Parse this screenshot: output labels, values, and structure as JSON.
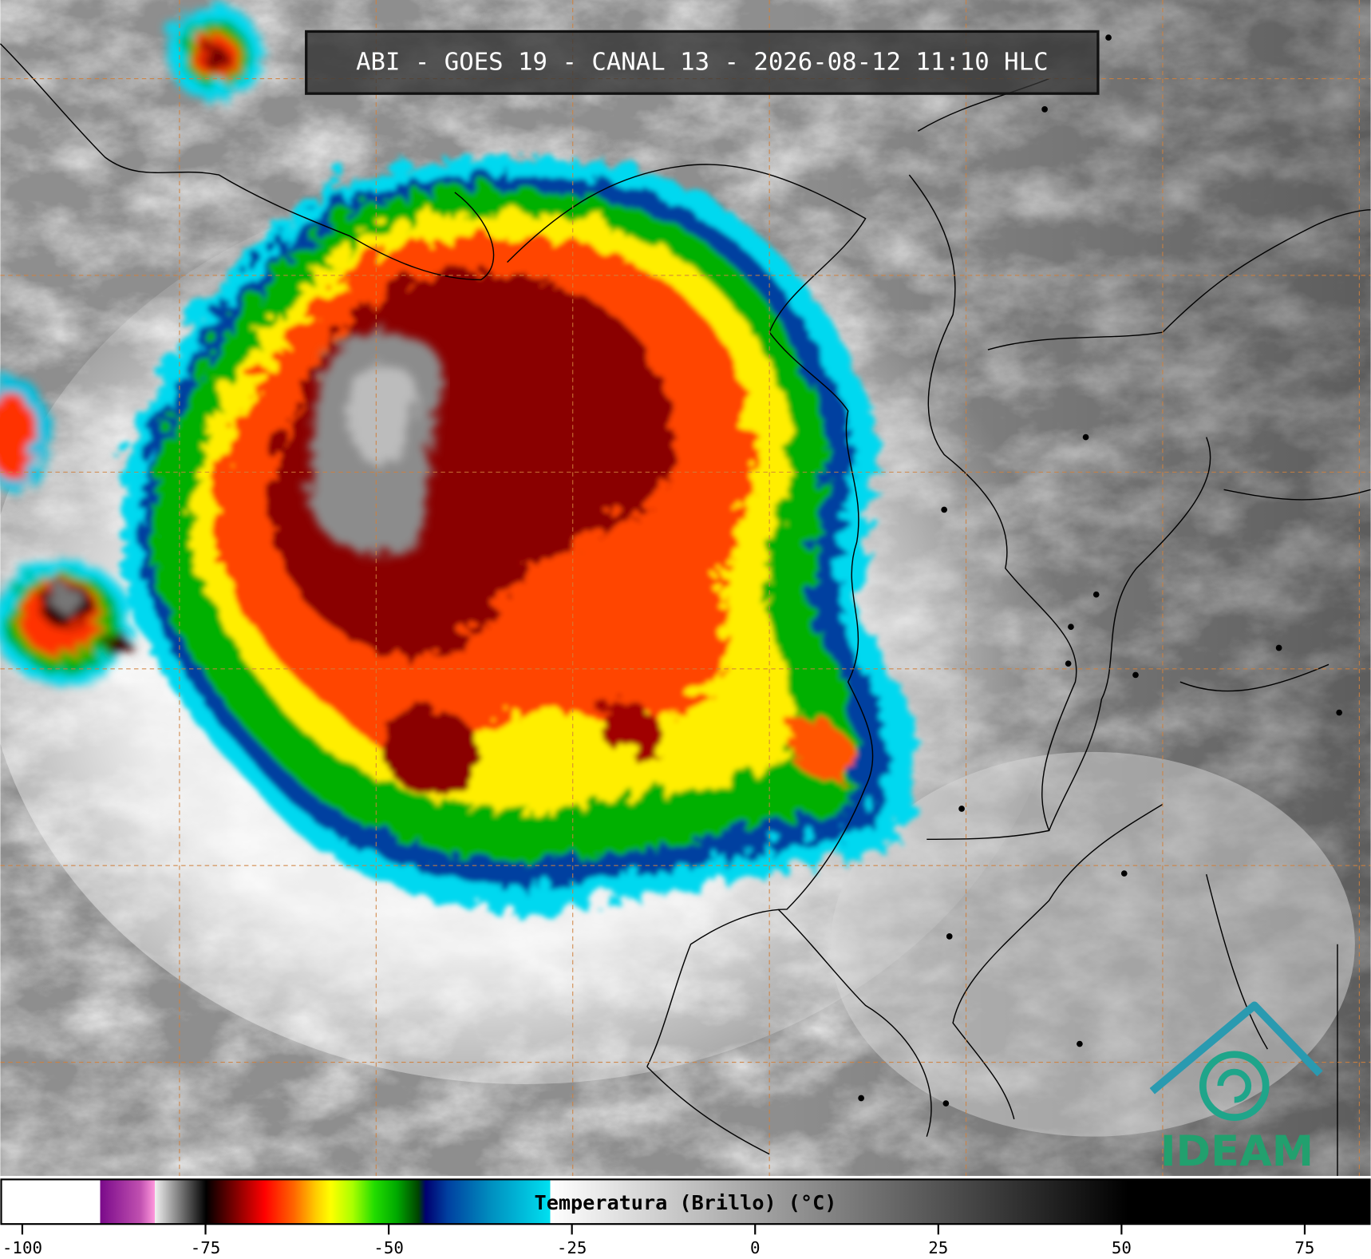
{
  "header": {
    "title": "ABI - GOES 19 - CANAL 13 - 2026-08-12 11:10 HLC"
  },
  "colorbar": {
    "label": "Temperatura (Brillo) (°C)",
    "lim": [
      -103,
      84
    ],
    "ticks": [
      -100,
      -75,
      -50,
      -25,
      0,
      25,
      50,
      75
    ],
    "colormap": [
      {
        "value": -103,
        "color": "#ffffff"
      },
      {
        "value": -89.5,
        "color": "#ffffff"
      },
      {
        "value": -89.5,
        "color": "#7a0a8a"
      },
      {
        "value": -84,
        "color": "#c050b0"
      },
      {
        "value": -82,
        "color": "#ff99dd"
      },
      {
        "value": -82,
        "color": "#f0f0f0"
      },
      {
        "value": -75,
        "color": "#000000"
      },
      {
        "value": -73,
        "color": "#400000"
      },
      {
        "value": -70,
        "color": "#a00000"
      },
      {
        "value": -67,
        "color": "#ff0000"
      },
      {
        "value": -63,
        "color": "#ff6600"
      },
      {
        "value": -60,
        "color": "#ffcc00"
      },
      {
        "value": -58,
        "color": "#ffff00"
      },
      {
        "value": -55,
        "color": "#aaff00"
      },
      {
        "value": -52,
        "color": "#22dd00"
      },
      {
        "value": -49,
        "color": "#00aa00"
      },
      {
        "value": -46,
        "color": "#004400"
      },
      {
        "value": -45,
        "color": "#000070"
      },
      {
        "value": -42,
        "color": "#0040a0"
      },
      {
        "value": -36,
        "color": "#0090c0"
      },
      {
        "value": -28,
        "color": "#00e0f0"
      },
      {
        "value": -28,
        "color": "#ffffff"
      },
      {
        "value": 51,
        "color": "#000000"
      },
      {
        "value": 84,
        "color": "#000000"
      }
    ]
  },
  "logo": {
    "text": "IDEAM"
  }
}
